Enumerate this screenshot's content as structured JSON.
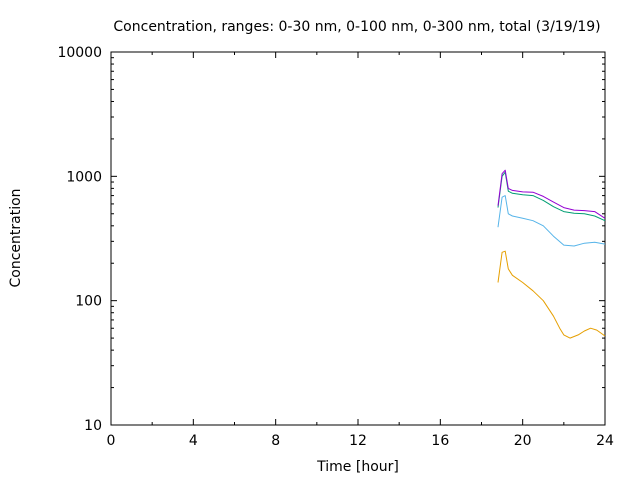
{
  "chart_data": {
    "type": "line",
    "title": "Concentration, ranges: 0-30 nm, 0-100 nm, 0-300 nm, total (3/19/19)",
    "xlabel": "Time [hour]",
    "ylabel": "Concentration",
    "xlim": [
      0,
      24
    ],
    "ylim": [
      10,
      10000
    ],
    "yscale": "log",
    "grid": false,
    "legend": "none",
    "x_ticks": [
      {
        "value": 0,
        "label": "0"
      },
      {
        "value": 4,
        "label": "4"
      },
      {
        "value": 8,
        "label": "8"
      },
      {
        "value": 12,
        "label": "12"
      },
      {
        "value": 16,
        "label": "16"
      },
      {
        "value": 20,
        "label": "20"
      },
      {
        "value": 24,
        "label": "24"
      }
    ],
    "y_ticks": [
      {
        "value": 10,
        "label": "10"
      },
      {
        "value": 100,
        "label": "100"
      },
      {
        "value": 1000,
        "label": "1000"
      },
      {
        "value": 10000,
        "label": "10000"
      }
    ],
    "series": [
      {
        "color": "#e69f00",
        "x": [
          18.8,
          19.0,
          19.15,
          19.3,
          19.5,
          20.0,
          20.5,
          21.0,
          21.5,
          21.8,
          22.0,
          22.3,
          22.7,
          23.0,
          23.3,
          23.6,
          24.0
        ],
        "y": [
          140,
          245,
          250,
          180,
          160,
          140,
          120,
          100,
          75,
          60,
          53,
          50,
          53,
          57,
          60,
          58,
          52
        ]
      },
      {
        "color": "#56b4e9",
        "x": [
          18.8,
          19.0,
          19.15,
          19.3,
          19.5,
          20.0,
          20.5,
          21.0,
          21.5,
          22.0,
          22.5,
          23.0,
          23.5,
          24.0
        ],
        "y": [
          390,
          680,
          700,
          500,
          480,
          460,
          440,
          400,
          330,
          280,
          275,
          290,
          295,
          285
        ]
      },
      {
        "color": "#009e73",
        "x": [
          18.8,
          19.0,
          19.15,
          19.3,
          19.5,
          20.0,
          20.5,
          21.0,
          21.5,
          22.0,
          22.5,
          23.0,
          23.5,
          24.0
        ],
        "y": [
          560,
          1000,
          1080,
          760,
          730,
          710,
          700,
          640,
          570,
          520,
          505,
          500,
          480,
          440
        ]
      },
      {
        "color": "#9400d3",
        "x": [
          18.8,
          19.0,
          19.15,
          19.3,
          19.5,
          20.0,
          20.5,
          21.0,
          21.5,
          22.0,
          22.5,
          23.0,
          23.5,
          24.0
        ],
        "y": [
          580,
          1050,
          1120,
          800,
          770,
          750,
          745,
          690,
          620,
          560,
          535,
          530,
          520,
          460
        ]
      }
    ]
  }
}
